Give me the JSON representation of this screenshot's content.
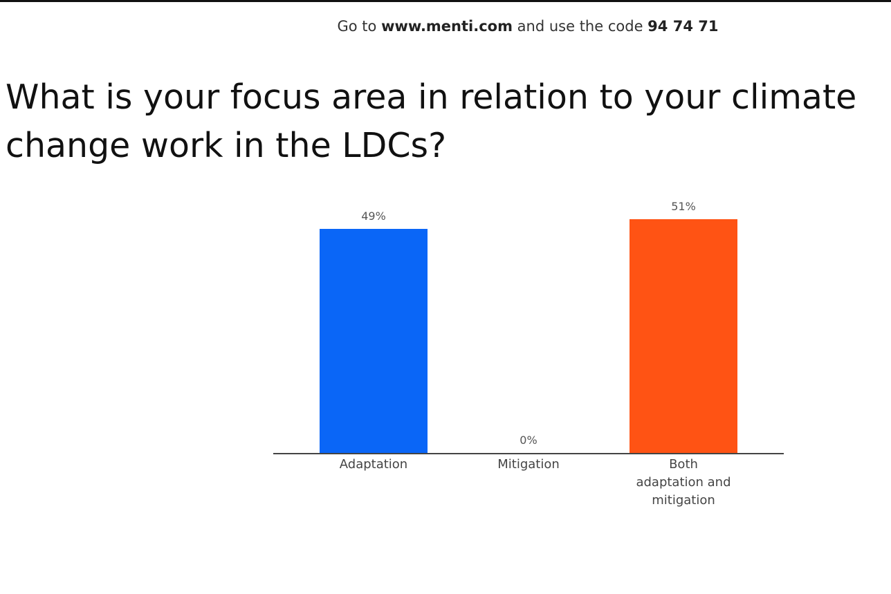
{
  "header": {
    "prefix": "Go to",
    "site": "www.menti.com",
    "middle": "and use the code",
    "code": "94 74 71"
  },
  "chart_data": {
    "type": "bar",
    "title": "What is your focus area in relation to your climate change work in the LDCs?",
    "categories": [
      "Adaptation",
      "Mitigation",
      "Both adaptation and mitigation"
    ],
    "values": [
      49,
      0,
      51
    ],
    "value_labels": [
      "49%",
      "0%",
      "51%"
    ],
    "colors": [
      "#0a66f7",
      "#7a7a7a",
      "#ff5314"
    ]
  }
}
